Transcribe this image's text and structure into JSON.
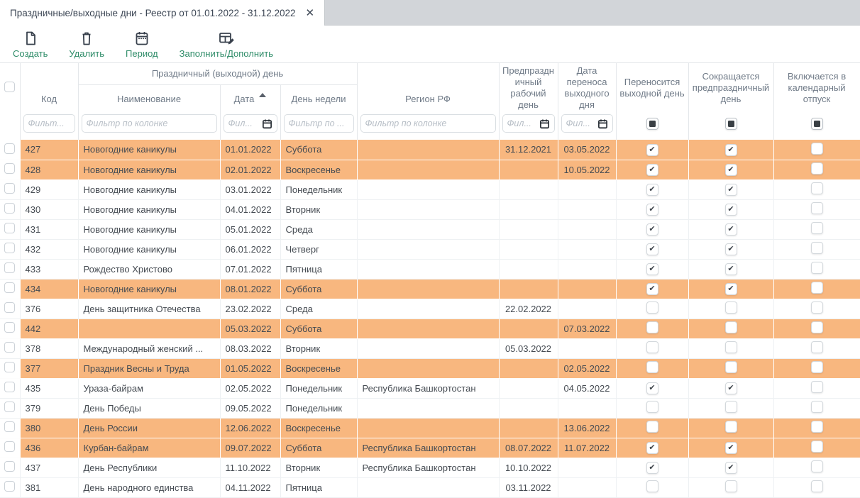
{
  "tab": {
    "title": "Праздничные/выходные дни - Реестр от 01.01.2022 - 31.12.2022",
    "close_icon": "close"
  },
  "toolbar": {
    "buttons": [
      {
        "label": "Создать",
        "icon": "new-document-icon"
      },
      {
        "label": "Удалить",
        "icon": "trash-icon"
      },
      {
        "label": "Период",
        "icon": "calendar-icon"
      },
      {
        "label": "Заполнить/Дополнить",
        "icon": "table-edit-icon"
      }
    ]
  },
  "colors": {
    "accent_green": "#2e8c68",
    "row_highlight": "#f8b77f",
    "icon_dark": "#39414d",
    "tabbar_gray": "#d2d5d9"
  },
  "table": {
    "group_header": "Праздничный (выходной) день",
    "columns": {
      "code": {
        "label": "Код",
        "filter_placeholder": "Фильт..."
      },
      "name": {
        "label": "Наименование",
        "filter_placeholder": "Фильтр по колонке"
      },
      "date": {
        "label": "Дата",
        "filter_placeholder": "Фил...",
        "sorted": "asc"
      },
      "weekday": {
        "label": "День недели",
        "filter_placeholder": "Фильтр по ..."
      },
      "region": {
        "label": "Регион РФ",
        "filter_placeholder": "Фильтр по колонке"
      },
      "preholiday": {
        "label": "Предпраздничный рабочий день",
        "filter_placeholder": "Фил..."
      },
      "transfer": {
        "label": "Дата переноса выходного дня",
        "filter_placeholder": "Фил..."
      },
      "moved": {
        "label": "Переносится выходной день",
        "header_checkbox": "indeterminate"
      },
      "shortened": {
        "label": "Сокращается предпраздничный день",
        "header_checkbox": "indeterminate"
      },
      "vacation": {
        "label": "Включается в календарный отпуск",
        "header_checkbox": "indeterminate"
      }
    },
    "rows": [
      {
        "code": "427",
        "name": "Новогодние каникулы",
        "date": "01.01.2022",
        "weekday": "Суббота",
        "region": "",
        "preholiday": "31.12.2021",
        "transfer": "03.05.2022",
        "moved": true,
        "shortened": true,
        "vacation": false,
        "highlighted": true
      },
      {
        "code": "428",
        "name": "Новогодние каникулы",
        "date": "02.01.2022",
        "weekday": "Воскресенье",
        "region": "",
        "preholiday": "",
        "transfer": "10.05.2022",
        "moved": true,
        "shortened": true,
        "vacation": false,
        "highlighted": true
      },
      {
        "code": "429",
        "name": "Новогодние каникулы",
        "date": "03.01.2022",
        "weekday": "Понедельник",
        "region": "",
        "preholiday": "",
        "transfer": "",
        "moved": true,
        "shortened": true,
        "vacation": false,
        "highlighted": false
      },
      {
        "code": "430",
        "name": "Новогодние каникулы",
        "date": "04.01.2022",
        "weekday": "Вторник",
        "region": "",
        "preholiday": "",
        "transfer": "",
        "moved": true,
        "shortened": true,
        "vacation": false,
        "highlighted": false
      },
      {
        "code": "431",
        "name": "Новогодние каникулы",
        "date": "05.01.2022",
        "weekday": "Среда",
        "region": "",
        "preholiday": "",
        "transfer": "",
        "moved": true,
        "shortened": true,
        "vacation": false,
        "highlighted": false
      },
      {
        "code": "432",
        "name": "Новогодние каникулы",
        "date": "06.01.2022",
        "weekday": "Четверг",
        "region": "",
        "preholiday": "",
        "transfer": "",
        "moved": true,
        "shortened": true,
        "vacation": false,
        "highlighted": false
      },
      {
        "code": "433",
        "name": "Рождество Христово",
        "date": "07.01.2022",
        "weekday": "Пятница",
        "region": "",
        "preholiday": "",
        "transfer": "",
        "moved": true,
        "shortened": true,
        "vacation": false,
        "highlighted": false
      },
      {
        "code": "434",
        "name": "Новогодние каникулы",
        "date": "08.01.2022",
        "weekday": "Суббота",
        "region": "",
        "preholiday": "",
        "transfer": "",
        "moved": true,
        "shortened": true,
        "vacation": false,
        "highlighted": true
      },
      {
        "code": "376",
        "name": "День защитника Отечества",
        "date": "23.02.2022",
        "weekday": "Среда",
        "region": "",
        "preholiday": "22.02.2022",
        "transfer": "",
        "moved": false,
        "shortened": false,
        "vacation": false,
        "highlighted": false
      },
      {
        "code": "442",
        "name": "",
        "date": "05.03.2022",
        "weekday": "Суббота",
        "region": "",
        "preholiday": "",
        "transfer": "07.03.2022",
        "moved": false,
        "shortened": false,
        "vacation": false,
        "highlighted": true
      },
      {
        "code": "378",
        "name": "Международный женский ...",
        "date": "08.03.2022",
        "weekday": "Вторник",
        "region": "",
        "preholiday": "05.03.2022",
        "transfer": "",
        "moved": false,
        "shortened": false,
        "vacation": false,
        "highlighted": false
      },
      {
        "code": "377",
        "name": "Праздник Весны и Труда",
        "date": "01.05.2022",
        "weekday": "Воскресенье",
        "region": "",
        "preholiday": "",
        "transfer": "02.05.2022",
        "moved": false,
        "shortened": false,
        "vacation": false,
        "highlighted": true
      },
      {
        "code": "435",
        "name": "Ураза-байрам",
        "date": "02.05.2022",
        "weekday": "Понедельник",
        "region": "Республика Башкортостан",
        "preholiday": "",
        "transfer": "04.05.2022",
        "moved": true,
        "shortened": true,
        "vacation": false,
        "highlighted": false
      },
      {
        "code": "379",
        "name": "День Победы",
        "date": "09.05.2022",
        "weekday": "Понедельник",
        "region": "",
        "preholiday": "",
        "transfer": "",
        "moved": false,
        "shortened": false,
        "vacation": false,
        "highlighted": false
      },
      {
        "code": "380",
        "name": "День России",
        "date": "12.06.2022",
        "weekday": "Воскресенье",
        "region": "",
        "preholiday": "",
        "transfer": "13.06.2022",
        "moved": false,
        "shortened": false,
        "vacation": false,
        "highlighted": true
      },
      {
        "code": "436",
        "name": "Курбан-байрам",
        "date": "09.07.2022",
        "weekday": "Суббота",
        "region": "Республика Башкортостан",
        "preholiday": "08.07.2022",
        "transfer": "11.07.2022",
        "moved": true,
        "shortened": true,
        "vacation": false,
        "highlighted": true
      },
      {
        "code": "437",
        "name": "День Республики",
        "date": "11.10.2022",
        "weekday": "Вторник",
        "region": "Республика Башкортостан",
        "preholiday": "10.10.2022",
        "transfer": "",
        "moved": true,
        "shortened": true,
        "vacation": false,
        "highlighted": false
      },
      {
        "code": "381",
        "name": "День народного единства",
        "date": "04.11.2022",
        "weekday": "Пятница",
        "region": "",
        "preholiday": "03.11.2022",
        "transfer": "",
        "moved": false,
        "shortened": false,
        "vacation": false,
        "highlighted": false
      }
    ]
  }
}
